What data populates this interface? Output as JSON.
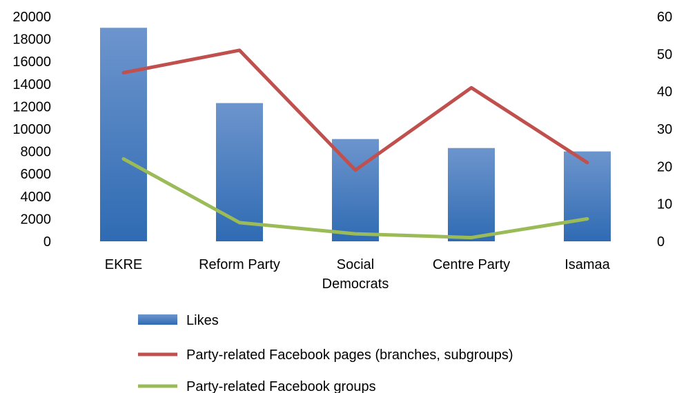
{
  "chart_data": {
    "type": "bar",
    "categories": [
      "EKRE",
      "Reform Party",
      "Social Democrats",
      "Centre Party",
      "Isamaa"
    ],
    "category_lines": [
      [
        "EKRE"
      ],
      [
        "Reform Party"
      ],
      [
        "Social",
        "Democrats"
      ],
      [
        "Centre Party"
      ],
      [
        "Isamaa"
      ]
    ],
    "series": [
      {
        "name": "Likes",
        "type": "bar",
        "axis": "left",
        "color": "#3E76BD",
        "values": [
          19000,
          12300,
          9100,
          8300,
          8000
        ]
      },
      {
        "name": "Party-related Facebook pages (branches, subgroups)",
        "type": "line",
        "axis": "right",
        "color": "#C0504D",
        "values": [
          45,
          51,
          19,
          41,
          21
        ]
      },
      {
        "name": "Party-related Facebook groups",
        "type": "line",
        "axis": "right",
        "color": "#9BBB59",
        "values": [
          22,
          5,
          2,
          1,
          6
        ]
      }
    ],
    "y_left": {
      "min": 0,
      "max": 20000,
      "ticks": [
        0,
        2000,
        4000,
        6000,
        8000,
        10000,
        12000,
        14000,
        16000,
        18000,
        20000
      ]
    },
    "y_right": {
      "min": 0,
      "max": 60,
      "ticks": [
        0,
        10,
        20,
        30,
        40,
        50,
        60
      ]
    },
    "grid": false,
    "legend_position": "bottom",
    "title": "",
    "xlabel": "",
    "ylabel": ""
  }
}
